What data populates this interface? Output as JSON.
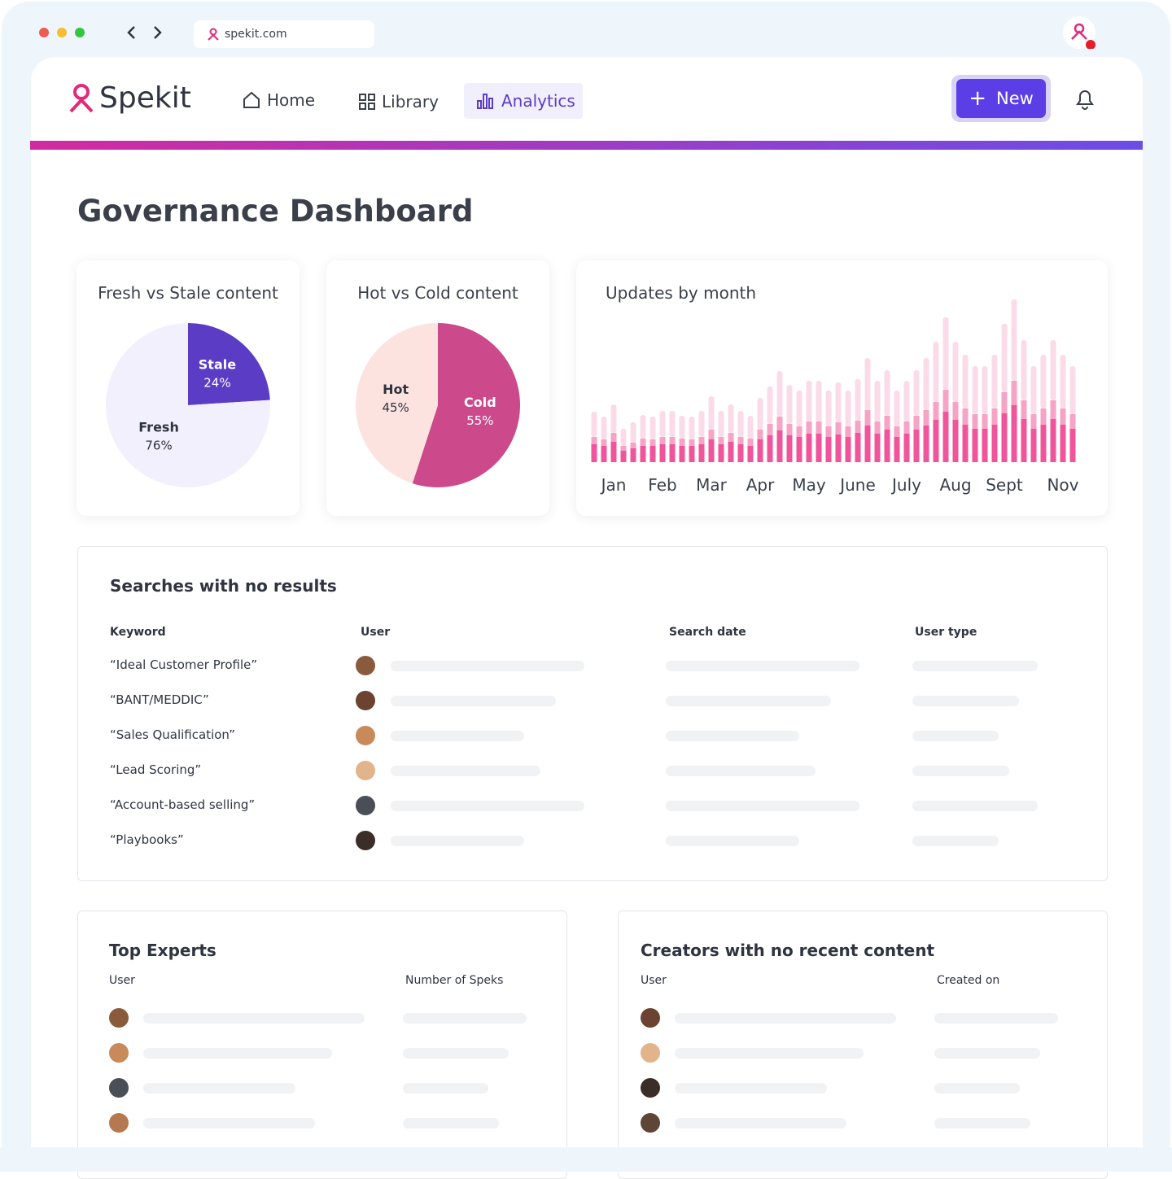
{
  "browser": {
    "url": "spekit.com"
  },
  "header": {
    "logo": "Spekit",
    "nav": [
      "Home",
      "Library",
      "Analytics"
    ],
    "button": "New"
  },
  "page": {
    "title": "Governance Dashboard"
  },
  "chart_data": [
    {
      "type": "pie",
      "title": "Fresh vs Stale content",
      "categories": [
        "Stale",
        "Fresh"
      ],
      "values": [
        24,
        76
      ],
      "value_labels": [
        "24%",
        "76%"
      ],
      "colors": [
        "#5b3cc4",
        "#f3f0fd"
      ]
    },
    {
      "type": "pie",
      "title": "Hot vs Cold content",
      "categories": [
        "Cold",
        "Hot"
      ],
      "values": [
        55,
        45
      ],
      "value_labels": [
        "55%",
        "45%"
      ],
      "colors": [
        "#cc4a8c",
        "#fde3e0"
      ]
    },
    {
      "type": "stacked_bar",
      "title": "Updates by month",
      "categories": [
        null,
        null,
        "Jan",
        null,
        null,
        null,
        null,
        "Feb",
        null,
        null,
        null,
        null,
        "Mar",
        null,
        null,
        null,
        null,
        "Apr",
        null,
        null,
        null,
        null,
        "May",
        null,
        null,
        null,
        null,
        "June",
        null,
        null,
        null,
        null,
        "July",
        null,
        null,
        null,
        null,
        "Aug",
        null,
        null,
        null,
        null,
        "Sept",
        null,
        null,
        null,
        null,
        null,
        "Nov",
        null
      ],
      "ylim": [
        0,
        200
      ],
      "series": [
        {
          "color": "#f0549a",
          "values": [
            22,
            20,
            25,
            14,
            17,
            20,
            20,
            22,
            22,
            20,
            20,
            22,
            28,
            22,
            25,
            22,
            20,
            28,
            33,
            39,
            33,
            31,
            35,
            35,
            31,
            34,
            31,
            36,
            45,
            35,
            40,
            31,
            35,
            40,
            45,
            52,
            62,
            52,
            46,
            41,
            41,
            46,
            60,
            70,
            53,
            41,
            46,
            53,
            46,
            41
          ]
        },
        {
          "color": "#f6a3c5",
          "values": [
            9,
            8,
            11,
            6,
            7,
            9,
            8,
            9,
            9,
            9,
            8,
            9,
            12,
            9,
            11,
            9,
            9,
            12,
            14,
            17,
            14,
            13,
            15,
            15,
            13,
            15,
            13,
            15,
            19,
            15,
            17,
            13,
            15,
            17,
            19,
            22,
            27,
            22,
            20,
            18,
            18,
            20,
            26,
            30,
            23,
            18,
            20,
            23,
            20,
            18
          ]
        },
        {
          "color": "#fbdbe8",
          "values": [
            31,
            28,
            35,
            21,
            25,
            29,
            28,
            32,
            32,
            28,
            28,
            32,
            41,
            32,
            35,
            32,
            28,
            39,
            46,
            56,
            48,
            44,
            50,
            50,
            44,
            49,
            44,
            51,
            64,
            50,
            56,
            44,
            50,
            56,
            64,
            74,
            89,
            74,
            66,
            59,
            59,
            66,
            84,
            100,
            74,
            59,
            66,
            74,
            66,
            59
          ]
        }
      ]
    }
  ],
  "searches": {
    "title": "Searches with no results",
    "columns": [
      "Keyword",
      "User",
      "Search date",
      "User type"
    ],
    "rows": [
      "“Ideal Customer Profile”",
      "“BANT/MEDDIC”",
      "“Sales Qualification”",
      "“Lead Scoring”",
      "“Account-based selling”",
      "“Playbooks”"
    ]
  },
  "experts": {
    "title": "Top Experts",
    "columns": [
      "User",
      "Number of Speks"
    ]
  },
  "creators": {
    "title": "Creators with no recent content",
    "columns": [
      "User",
      "Created on"
    ]
  }
}
